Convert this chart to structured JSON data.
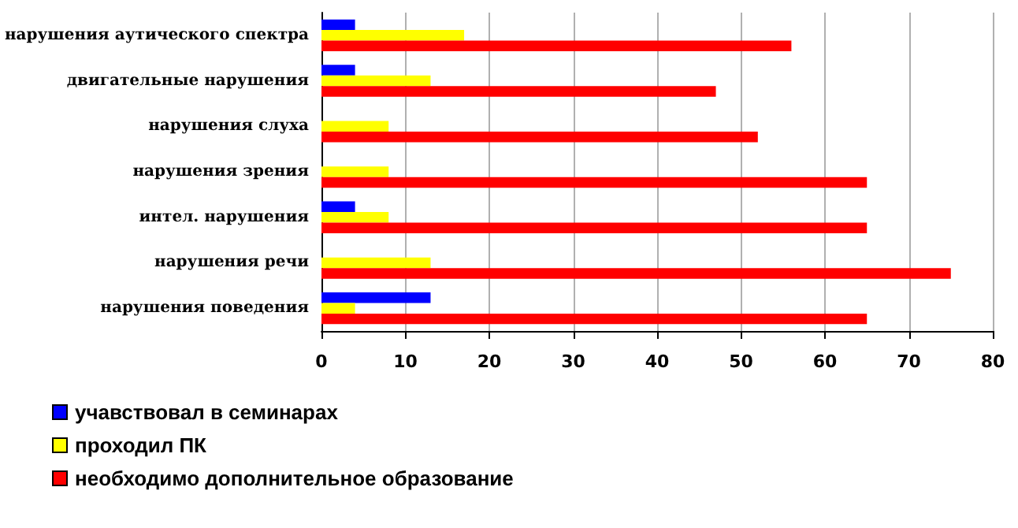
{
  "chart_data": {
    "type": "bar",
    "orientation": "horizontal",
    "categories": [
      "нарушения аутического спектра",
      "двигательные нарушения",
      "нарушения слуха",
      "нарушения зрения",
      "интел. нарушения",
      "нарушения речи",
      "нарушения поведения"
    ],
    "series": [
      {
        "name": "учавствовал в семинарах",
        "color": "#0000ff",
        "values": [
          4,
          4,
          0,
          0,
          4,
          0,
          13
        ]
      },
      {
        "name": "проходил ПК",
        "color": "#ffff00",
        "values": [
          17,
          13,
          8,
          8,
          8,
          13,
          4
        ]
      },
      {
        "name": "необходимо дополнительное образование",
        "color": "#ff0000",
        "values": [
          56,
          47,
          52,
          65,
          65,
          75,
          65
        ]
      }
    ],
    "xlim": [
      0,
      80
    ],
    "xticks": [
      0,
      10,
      20,
      30,
      40,
      50,
      60,
      70,
      80
    ],
    "grid": "x",
    "legend": "bottom left"
  }
}
